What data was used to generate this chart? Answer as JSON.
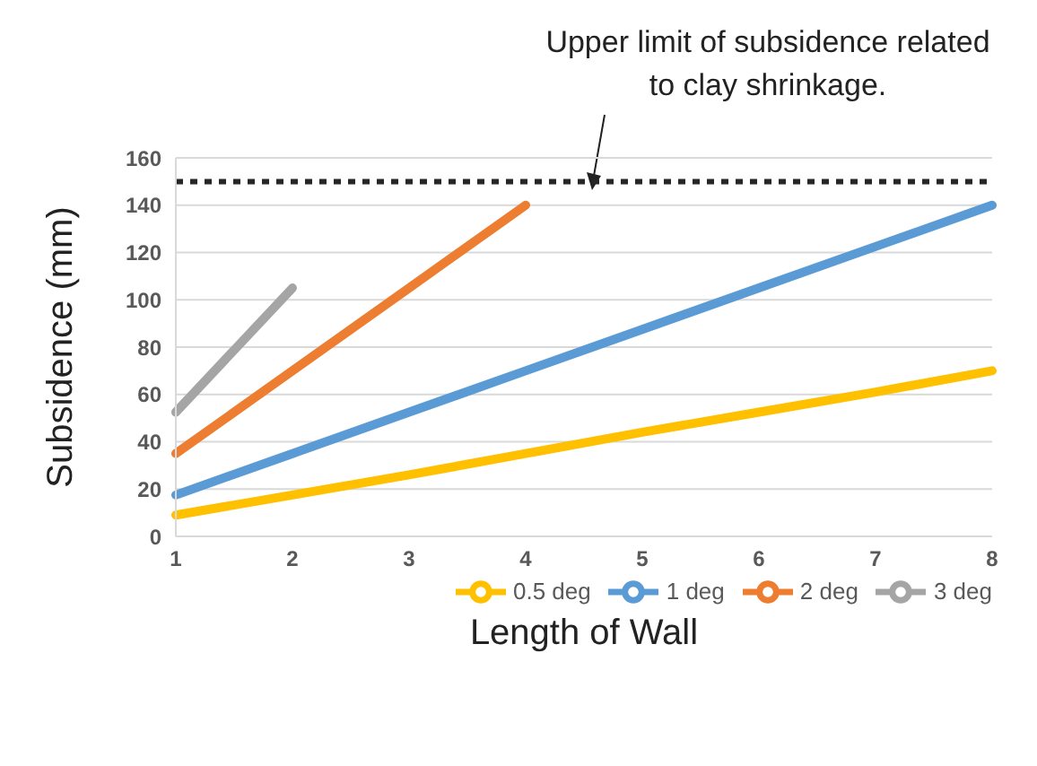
{
  "chart_data": {
    "type": "line",
    "xlabel": "Length of Wall",
    "ylabel": "Subsidence (mm)",
    "categories": [
      "1",
      "2",
      "3",
      "4",
      "5",
      "6",
      "7",
      "8"
    ],
    "series": [
      {
        "name": "1 deg",
        "color": "#5b9bd5",
        "values": [
          17.5,
          35,
          52.5,
          70,
          87.5,
          105,
          122.5,
          140
        ]
      },
      {
        "name": "2 deg",
        "color": "#ed7d31",
        "values": [
          35,
          70,
          105,
          140,
          null,
          null,
          null,
          null
        ]
      },
      {
        "name": "3 deg",
        "color": "#a5a5a5",
        "values": [
          52.5,
          105,
          null,
          null,
          null,
          null,
          null,
          null
        ]
      },
      {
        "name": "0.5 deg",
        "color": "#ffc000",
        "values": [
          9,
          17.5,
          26,
          35,
          44,
          52.5,
          61,
          70
        ]
      }
    ],
    "ylim": [
      0,
      160
    ],
    "yticks": [
      0,
      20,
      40,
      60,
      80,
      100,
      120,
      140,
      160
    ],
    "grid": "y",
    "legend": "bottom right",
    "ref_lines": [
      {
        "axis": "y",
        "value": 150,
        "color": "#262626",
        "line_style": "dotted"
      }
    ],
    "annotations": [
      "Upper limit of subsidence related to clay shrinkage."
    ]
  }
}
